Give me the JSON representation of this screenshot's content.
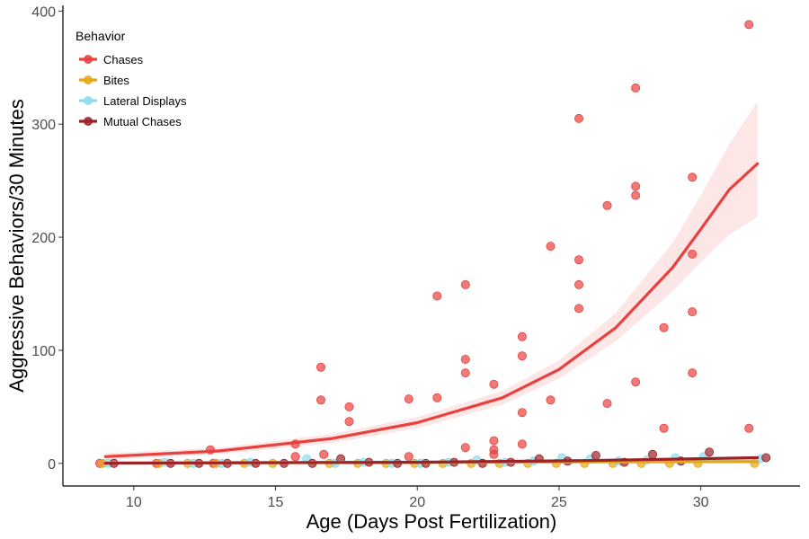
{
  "chart_data": {
    "type": "scatter",
    "title": "",
    "xlabel": "Age (Days Post Fertilization)",
    "ylabel": "Aggressive Behaviors/30 Minutes",
    "xlim": [
      7.5,
      33.5
    ],
    "ylim": [
      -20,
      405
    ],
    "x_ticks": [
      10,
      15,
      20,
      25,
      30
    ],
    "y_ticks": [
      0,
      100,
      200,
      300,
      400
    ],
    "grid": false,
    "legend": {
      "title": "Behavior",
      "position": "top-left"
    },
    "series": [
      {
        "name": "Chases",
        "color": "#e8413f",
        "points": [
          [
            8.8,
            0
          ],
          [
            10.8,
            0
          ],
          [
            12.7,
            12
          ],
          [
            12.8,
            0
          ],
          [
            15.7,
            17
          ],
          [
            15.7,
            6
          ],
          [
            16.6,
            85
          ],
          [
            16.6,
            56
          ],
          [
            16.7,
            8
          ],
          [
            17.6,
            50
          ],
          [
            17.6,
            37
          ],
          [
            19.7,
            57
          ],
          [
            19.7,
            6
          ],
          [
            20.7,
            148
          ],
          [
            20.7,
            58
          ],
          [
            21.7,
            158
          ],
          [
            21.7,
            92
          ],
          [
            21.7,
            80
          ],
          [
            21.7,
            14
          ],
          [
            22.7,
            70
          ],
          [
            22.7,
            20
          ],
          [
            22.7,
            12
          ],
          [
            22.7,
            8
          ],
          [
            23.7,
            112
          ],
          [
            23.7,
            95
          ],
          [
            23.7,
            45
          ],
          [
            23.7,
            17
          ],
          [
            24.7,
            192
          ],
          [
            24.7,
            56
          ],
          [
            25.7,
            305
          ],
          [
            25.7,
            180
          ],
          [
            25.7,
            158
          ],
          [
            25.7,
            137
          ],
          [
            26.7,
            228
          ],
          [
            26.7,
            53
          ],
          [
            27.7,
            332
          ],
          [
            27.7,
            245
          ],
          [
            27.7,
            237
          ],
          [
            27.7,
            72
          ],
          [
            28.7,
            120
          ],
          [
            28.7,
            31
          ],
          [
            29.7,
            253
          ],
          [
            29.7,
            185
          ],
          [
            29.7,
            134
          ],
          [
            29.7,
            80
          ],
          [
            31.7,
            388
          ],
          [
            31.7,
            31
          ]
        ],
        "fit": [
          [
            9,
            6
          ],
          [
            13,
            11
          ],
          [
            17,
            22
          ],
          [
            20,
            36
          ],
          [
            23,
            58
          ],
          [
            25,
            83
          ],
          [
            27,
            120
          ],
          [
            29,
            173
          ],
          [
            30,
            207
          ],
          [
            31,
            242
          ],
          [
            32,
            265
          ]
        ],
        "ci_low": [
          [
            9,
            3
          ],
          [
            13,
            8
          ],
          [
            17,
            18
          ],
          [
            20,
            31
          ],
          [
            23,
            52
          ],
          [
            25,
            75
          ],
          [
            27,
            108
          ],
          [
            29,
            152
          ],
          [
            30,
            178
          ],
          [
            31,
            202
          ],
          [
            32,
            218
          ]
        ],
        "ci_high": [
          [
            9,
            9
          ],
          [
            13,
            14
          ],
          [
            17,
            26
          ],
          [
            20,
            41
          ],
          [
            23,
            64
          ],
          [
            25,
            91
          ],
          [
            27,
            133
          ],
          [
            29,
            195
          ],
          [
            30,
            237
          ],
          [
            31,
            282
          ],
          [
            32,
            320
          ]
        ]
      },
      {
        "name": "Bites",
        "color": "#e8a617",
        "points": [
          [
            8.9,
            0
          ],
          [
            10.9,
            0
          ],
          [
            11.9,
            0
          ],
          [
            12.9,
            0
          ],
          [
            13.9,
            0
          ],
          [
            14.9,
            0
          ],
          [
            16.9,
            0
          ],
          [
            17.9,
            0
          ],
          [
            18.9,
            0
          ],
          [
            19.9,
            0
          ],
          [
            20.9,
            0
          ],
          [
            21.9,
            0
          ],
          [
            22.9,
            0
          ],
          [
            23.9,
            0
          ],
          [
            24.9,
            0
          ],
          [
            25.9,
            0
          ],
          [
            26.9,
            0
          ],
          [
            27.9,
            0
          ],
          [
            28.9,
            0
          ],
          [
            29.9,
            0
          ],
          [
            31.9,
            0
          ]
        ],
        "fit": [
          [
            9,
            0.3
          ],
          [
            32,
            1.5
          ]
        ]
      },
      {
        "name": "Lateral Displays",
        "color": "#8ddcee",
        "points": [
          [
            9.1,
            0
          ],
          [
            11.1,
            1
          ],
          [
            12.1,
            0
          ],
          [
            13.1,
            0
          ],
          [
            14.1,
            1
          ],
          [
            16.1,
            4
          ],
          [
            17.1,
            0
          ],
          [
            18.1,
            1
          ],
          [
            19.1,
            0
          ],
          [
            20.1,
            0
          ],
          [
            21.1,
            1
          ],
          [
            22.1,
            3
          ],
          [
            23.1,
            1
          ],
          [
            24.1,
            2
          ],
          [
            25.1,
            5
          ],
          [
            26.1,
            4
          ],
          [
            27.1,
            2
          ],
          [
            28.1,
            3
          ],
          [
            29.1,
            5
          ],
          [
            30.1,
            6
          ],
          [
            32.1,
            4
          ]
        ],
        "fit": [
          [
            9,
            0.5
          ],
          [
            32,
            2
          ]
        ]
      },
      {
        "name": "Mutual Chases",
        "color": "#9b2226",
        "points": [
          [
            9.3,
            0
          ],
          [
            11.3,
            0
          ],
          [
            12.3,
            0
          ],
          [
            13.3,
            0
          ],
          [
            14.3,
            0
          ],
          [
            15.3,
            0
          ],
          [
            16.3,
            0
          ],
          [
            17.3,
            4
          ],
          [
            18.3,
            1
          ],
          [
            19.3,
            0
          ],
          [
            20.3,
            0
          ],
          [
            21.3,
            1
          ],
          [
            22.3,
            0
          ],
          [
            23.3,
            1
          ],
          [
            24.3,
            4
          ],
          [
            25.3,
            2
          ],
          [
            26.3,
            7
          ],
          [
            27.3,
            1
          ],
          [
            28.3,
            8
          ],
          [
            29.3,
            2
          ],
          [
            30.3,
            10
          ],
          [
            32.3,
            5
          ]
        ],
        "fit": [
          [
            9,
            0.2
          ],
          [
            20,
            1
          ],
          [
            26,
            2.5
          ],
          [
            32,
            5
          ]
        ]
      }
    ]
  }
}
